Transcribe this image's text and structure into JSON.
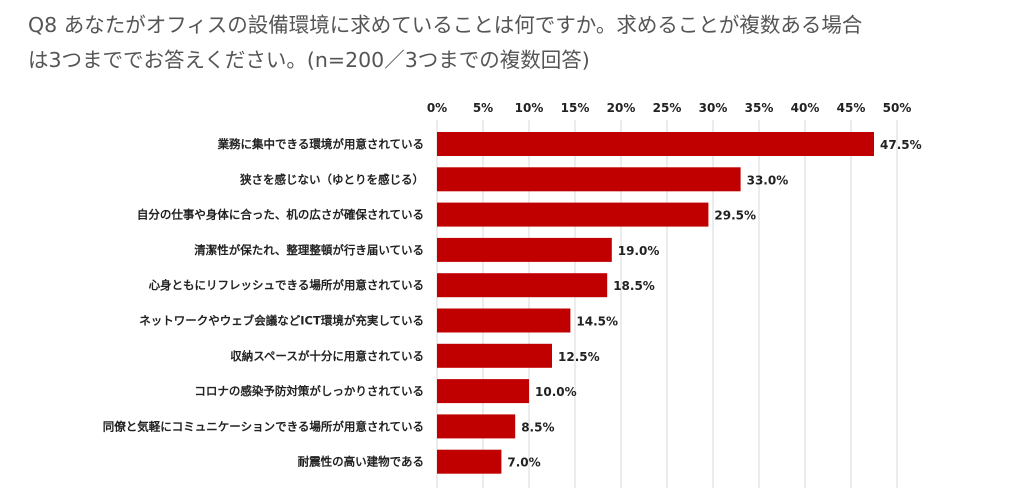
{
  "header": {
    "title_line1": "Q8 あなたがオフィスの設備環境に求めていることは何ですか。求めることが複数ある場合",
    "title_line2": "は3つまででお答えください。(n=200／3つまでの複数回答)"
  },
  "chart_data": {
    "type": "bar",
    "orientation": "horizontal",
    "categories": [
      "業務に集中できる環境が用意されている",
      "狭さを感じない（ゆとりを感じる）",
      "自分の仕事や身体に合った、机の広さが確保されている",
      "清潔性が保たれ、整理整頓が行き届いている",
      "心身ともにリフレッシュできる場所が用意されている",
      "ネットワークやウェブ会議などICT環境が充実している",
      "収納スペースが十分に用意されている",
      "コロナの感染予防対策がしっかりされている",
      "同僚と気軽にコミュニケーションできる場所が用意されている",
      "耐震性の高い建物である"
    ],
    "values": [
      47.5,
      33.0,
      29.5,
      19.0,
      18.5,
      14.5,
      12.5,
      10.0,
      8.5,
      7.0
    ],
    "value_labels": [
      "47.5%",
      "33.0%",
      "29.5%",
      "19.0%",
      "18.5%",
      "14.5%",
      "12.5%",
      "10.0%",
      "8.5%",
      "7.0%"
    ],
    "x_ticks": [
      0,
      5,
      10,
      15,
      20,
      25,
      30,
      35,
      40,
      45,
      50
    ],
    "x_tick_labels": [
      "0%",
      "5%",
      "10%",
      "15%",
      "20%",
      "25%",
      "30%",
      "35%",
      "40%",
      "45%",
      "50%"
    ],
    "xlim": [
      0,
      50
    ],
    "xaxis_position": "top",
    "grid": true,
    "bar_color": "#c00000",
    "grid_color": "#d9d9d9"
  }
}
